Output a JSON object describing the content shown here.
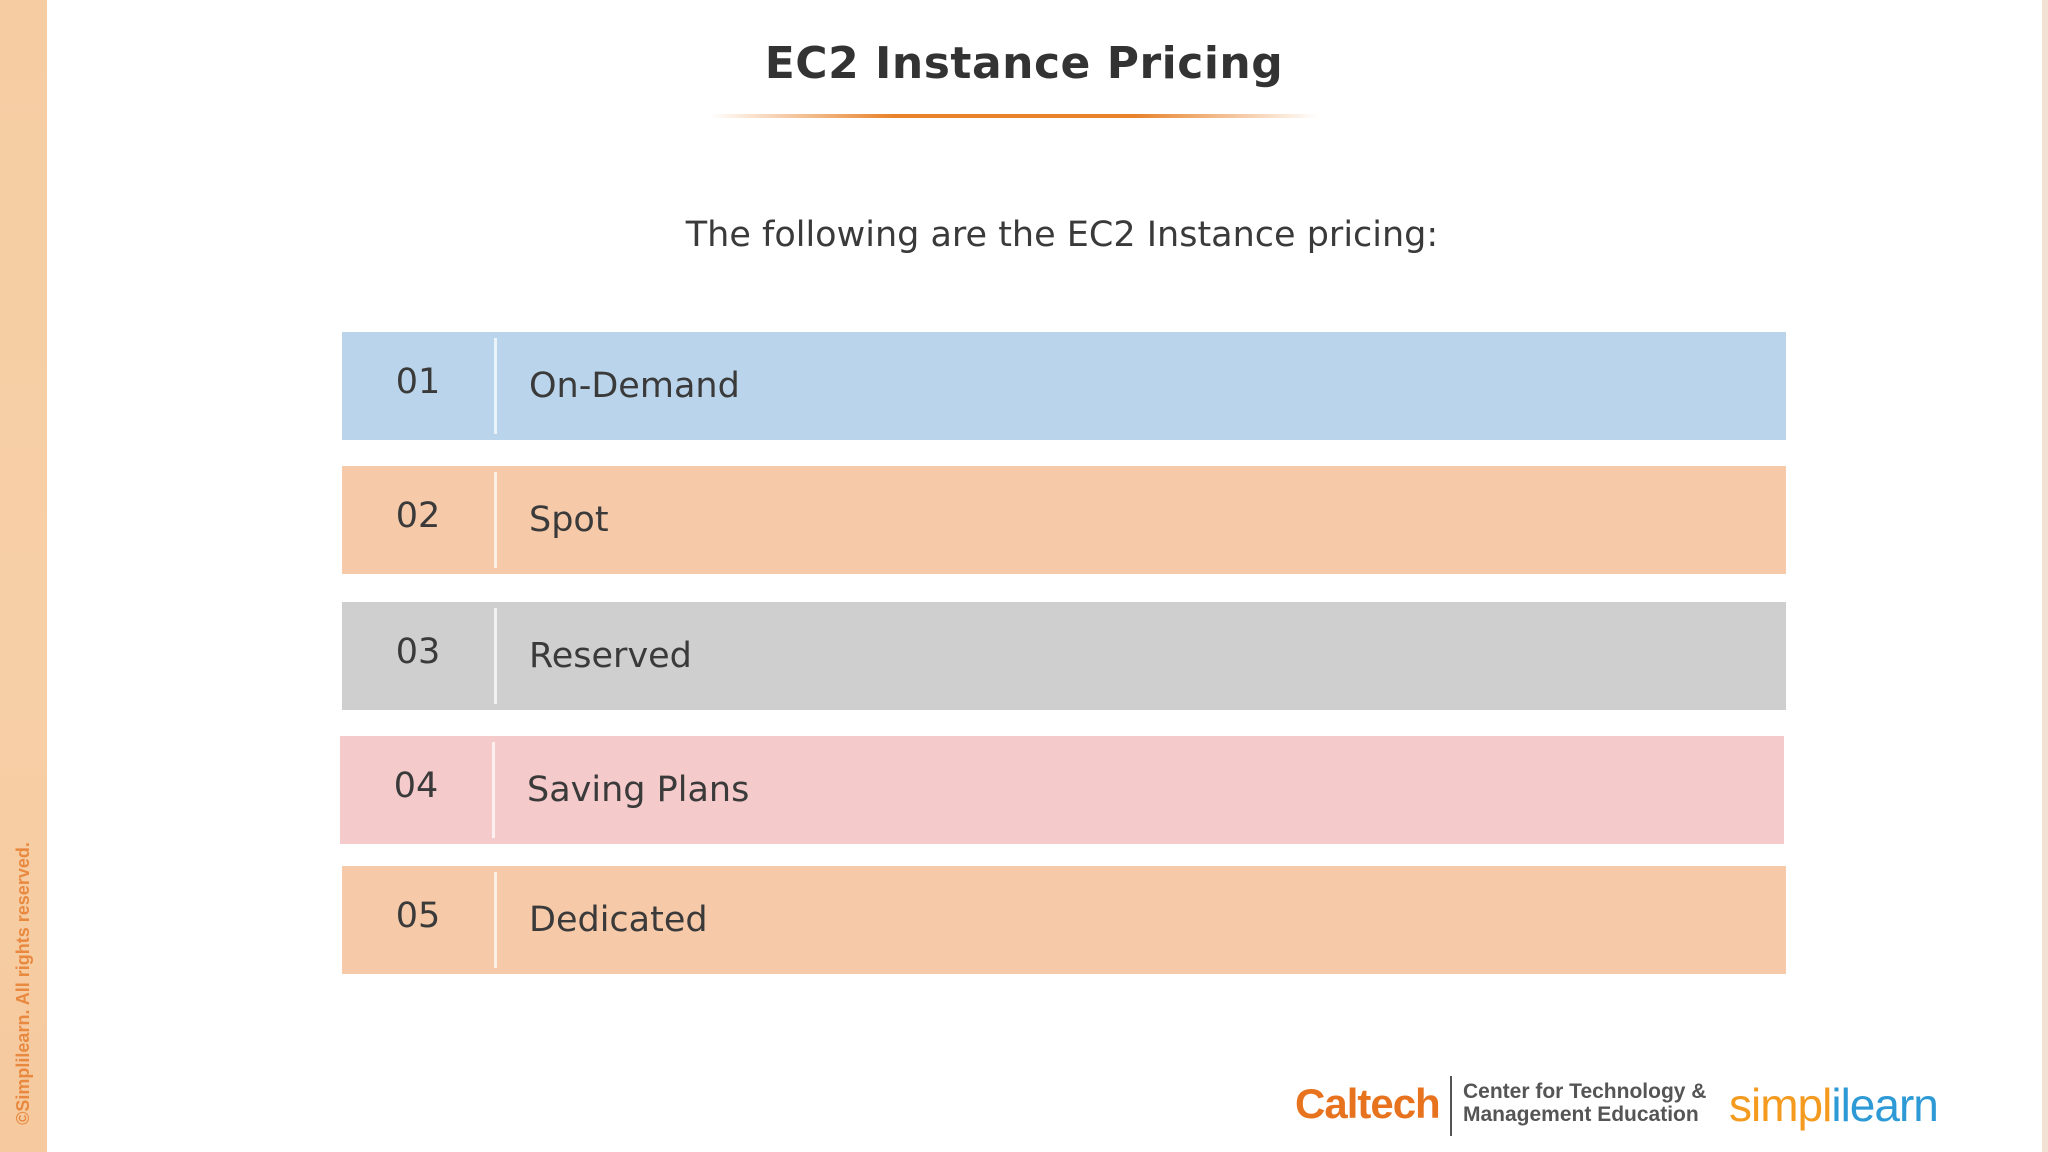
{
  "slide": {
    "title": "EC2 Instance Pricing",
    "intro": "The following are the EC2 Instance pricing:",
    "copyright": "©Simplilearn. All rights reserved."
  },
  "pricing_items": [
    {
      "number": "01",
      "label": "On-Demand",
      "color": "#bad5eb"
    },
    {
      "number": "02",
      "label": "Spot",
      "color": "#f6c9a9"
    },
    {
      "number": "03",
      "label": "Reserved",
      "color": "#d0cfd0"
    },
    {
      "number": "04",
      "label": "Saving Plans",
      "color": "#f4cacb"
    },
    {
      "number": "05",
      "label": "Dedicated",
      "color": "#f6c9a9"
    }
  ],
  "footer": {
    "caltech": "Caltech",
    "ctme_line1": "Center for Technology &",
    "ctme_line2": "Management Education",
    "simplilearn_part1": "simpl",
    "simplilearn_part2": "ilearn"
  },
  "colors": {
    "accent": "#e8832c",
    "left_bar": "#f6cda3"
  }
}
